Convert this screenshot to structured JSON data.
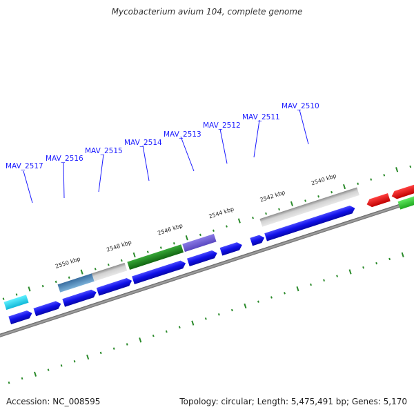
{
  "title": "Mycobacterium avium 104, complete genome",
  "footer": {
    "accession": "Accession: NC_008595",
    "summary": "Topology: circular; Length: 5,475,491 bp; Genes: 5,170"
  },
  "gene_labels": [
    "MAV_2517",
    "MAV_2516",
    "MAV_2515",
    "MAV_2514",
    "MAV_2513",
    "MAV_2512",
    "MAV_2511",
    "MAV_2510"
  ],
  "kbp_labels": [
    "2550 kbp",
    "2548 kbp",
    "2546 kbp",
    "2544 kbp",
    "2542 kbp",
    "2540 kbp"
  ],
  "colors": {
    "backbone": "#8a8a8a",
    "cds_blue": "#1010e8",
    "gray": "#b8b8b8",
    "green": "#1e8a1e",
    "purple": "#7060d0",
    "steelblue": "#4a7fb0",
    "cyan": "#20e0f0",
    "red": "#e81010",
    "lightgreen": "#30d030",
    "tick": "#2a8a2a",
    "label": "#1a1aff"
  }
}
